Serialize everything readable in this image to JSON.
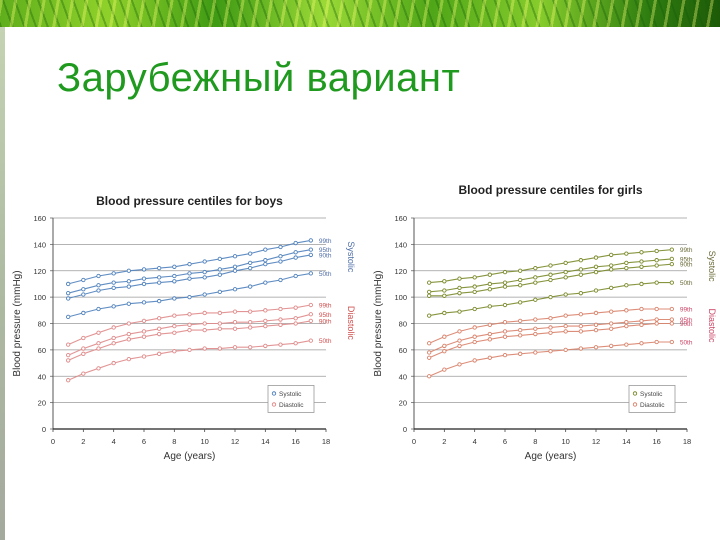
{
  "slide": {
    "title": "Зарубежный вариант"
  },
  "chart_data": [
    {
      "type": "line",
      "title": "Blood pressure centiles for boys",
      "xlabel": "Age (years)",
      "ylabel": "Blood pressure (mmHg)",
      "xlim": [
        0,
        18
      ],
      "ylim": [
        0,
        160
      ],
      "xticks": [
        0,
        2,
        4,
        6,
        8,
        10,
        12,
        14,
        16,
        18
      ],
      "yticks": [
        0,
        20,
        40,
        60,
        80,
        100,
        120,
        140,
        160
      ],
      "grid": true,
      "legend": {
        "position": "lower right",
        "entries": [
          "Systolic",
          "Diastolic"
        ]
      },
      "group_labels": {
        "systolic": "Systolic",
        "diastolic": "Diastolic"
      },
      "x": [
        1,
        2,
        3,
        4,
        5,
        6,
        7,
        8,
        9,
        10,
        11,
        12,
        13,
        14,
        15,
        16,
        17
      ],
      "series": [
        {
          "name": "Systolic 99th",
          "group": "systolic",
          "label": "99th",
          "values": [
            110,
            113,
            116,
            118,
            120,
            121,
            122,
            123,
            125,
            127,
            129,
            131,
            133,
            136,
            138,
            141,
            143
          ]
        },
        {
          "name": "Systolic 95th",
          "group": "systolic",
          "label": "95th",
          "values": [
            103,
            106,
            109,
            111,
            112,
            114,
            115,
            116,
            118,
            119,
            121,
            123,
            126,
            128,
            131,
            134,
            136
          ]
        },
        {
          "name": "Systolic 90th",
          "group": "systolic",
          "label": "90th",
          "values": [
            99,
            102,
            105,
            107,
            108,
            110,
            111,
            112,
            114,
            115,
            117,
            120,
            122,
            125,
            127,
            130,
            132
          ]
        },
        {
          "name": "Systolic 50th",
          "group": "systolic",
          "label": "50th",
          "values": [
            85,
            88,
            91,
            93,
            95,
            96,
            97,
            99,
            100,
            102,
            104,
            106,
            108,
            111,
            113,
            116,
            118
          ]
        },
        {
          "name": "Diastolic 99th",
          "group": "diastolic",
          "label": "99th",
          "values": [
            64,
            69,
            73,
            77,
            80,
            82,
            84,
            86,
            87,
            88,
            88,
            89,
            89,
            90,
            91,
            92,
            94
          ]
        },
        {
          "name": "Diastolic 95th",
          "group": "diastolic",
          "label": "95th",
          "values": [
            56,
            61,
            65,
            69,
            72,
            74,
            76,
            78,
            79,
            80,
            80,
            81,
            81,
            82,
            83,
            84,
            87
          ]
        },
        {
          "name": "Diastolic 90th",
          "group": "diastolic",
          "label": "90th",
          "values": [
            52,
            57,
            61,
            65,
            68,
            70,
            72,
            73,
            75,
            75,
            76,
            76,
            77,
            78,
            79,
            80,
            82
          ]
        },
        {
          "name": "Diastolic 50th",
          "group": "diastolic",
          "label": "50th",
          "values": [
            37,
            42,
            46,
            50,
            53,
            55,
            57,
            59,
            60,
            61,
            61,
            62,
            62,
            63,
            64,
            65,
            67
          ]
        }
      ],
      "colors": {
        "systolic": "#4f81bd",
        "diastolic": "#e08a8a",
        "systolic_label": "#4f6fa8",
        "diastolic_label": "#d05050"
      }
    },
    {
      "type": "line",
      "title": "Blood pressure centiles for girls",
      "xlabel": "Age (years)",
      "ylabel": "Blood pressure (mmHg)",
      "xlim": [
        0,
        18
      ],
      "ylim": [
        0,
        160
      ],
      "xticks": [
        0,
        2,
        4,
        6,
        8,
        10,
        12,
        14,
        16,
        18
      ],
      "yticks": [
        0,
        20,
        40,
        60,
        80,
        100,
        120,
        140,
        160
      ],
      "grid": true,
      "legend": {
        "position": "lower right",
        "entries": [
          "Systolic",
          "Diastolic"
        ]
      },
      "group_labels": {
        "systolic": "Systolic",
        "diastolic": "Diastolic"
      },
      "x": [
        1,
        2,
        3,
        4,
        5,
        6,
        7,
        8,
        9,
        10,
        11,
        12,
        13,
        14,
        15,
        16,
        17
      ],
      "series": [
        {
          "name": "Systolic 99th",
          "group": "systolic",
          "label": "99th",
          "values": [
            111,
            112,
            114,
            115,
            117,
            119,
            120,
            122,
            124,
            126,
            128,
            130,
            132,
            133,
            134,
            135,
            136
          ]
        },
        {
          "name": "Systolic 95th",
          "group": "systolic",
          "label": "95th",
          "values": [
            104,
            105,
            107,
            108,
            110,
            111,
            113,
            115,
            117,
            119,
            121,
            123,
            124,
            126,
            127,
            128,
            129
          ]
        },
        {
          "name": "Systolic 90th",
          "group": "systolic",
          "label": "90th",
          "values": [
            101,
            101,
            103,
            104,
            106,
            108,
            109,
            111,
            113,
            115,
            117,
            119,
            121,
            122,
            123,
            124,
            125
          ]
        },
        {
          "name": "Systolic 50th",
          "group": "systolic",
          "label": "50th",
          "values": [
            86,
            88,
            89,
            91,
            93,
            94,
            96,
            98,
            100,
            102,
            103,
            105,
            107,
            109,
            110,
            111,
            111
          ]
        },
        {
          "name": "Diastolic 99th",
          "group": "diastolic",
          "label": "99th",
          "values": [
            65,
            70,
            74,
            77,
            79,
            81,
            82,
            83,
            84,
            86,
            87,
            88,
            89,
            90,
            91,
            91,
            91
          ]
        },
        {
          "name": "Diastolic 95th",
          "group": "diastolic",
          "label": "95th",
          "values": [
            58,
            63,
            67,
            70,
            72,
            74,
            75,
            76,
            77,
            78,
            78,
            79,
            80,
            81,
            82,
            83,
            83
          ]
        },
        {
          "name": "Diastolic 90th",
          "group": "diastolic",
          "label": "90th",
          "values": [
            54,
            59,
            63,
            66,
            68,
            70,
            71,
            72,
            73,
            74,
            74,
            75,
            76,
            78,
            79,
            80,
            80
          ]
        },
        {
          "name": "Diastolic 50th",
          "group": "diastolic",
          "label": "50th",
          "values": [
            40,
            45,
            49,
            52,
            54,
            56,
            57,
            58,
            59,
            60,
            61,
            62,
            63,
            64,
            65,
            66,
            66
          ]
        }
      ],
      "colors": {
        "systolic": "#7a8a2a",
        "diastolic": "#d9826a",
        "systolic_label": "#6b6b3a",
        "diastolic_label": "#cc4466"
      }
    }
  ]
}
